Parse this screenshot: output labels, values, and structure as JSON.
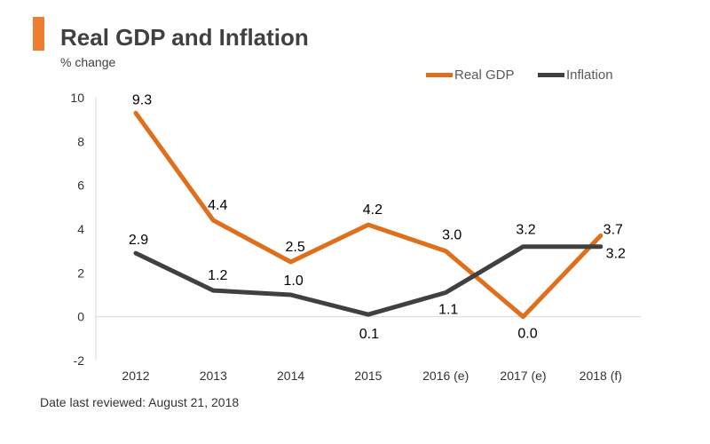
{
  "header": {
    "title": "Real GDP and Inflation",
    "subtitle": "% change",
    "accent_color": "#ED7D31"
  },
  "footnote": "Date last reviewed: August 21, 2018",
  "chart_data": {
    "type": "line",
    "categories": [
      "2012",
      "2013",
      "2014",
      "2015",
      "2016 (e)",
      "2017 (e)",
      "2018 (f)"
    ],
    "series": [
      {
        "name": "Real GDP",
        "values": [
          9.3,
          4.4,
          2.5,
          4.2,
          3.0,
          0.0,
          3.7
        ],
        "color": "#E06F1C",
        "labels": [
          "9.3",
          "4.4",
          "2.5",
          "4.2",
          "3.0",
          "0.0",
          "3.7"
        ]
      },
      {
        "name": "Inflation",
        "values": [
          2.9,
          1.2,
          1.0,
          0.1,
          1.1,
          3.2,
          3.2
        ],
        "color": "#404040",
        "labels": [
          "2.9",
          "1.2",
          "1.0",
          "0.1",
          "1.1",
          "3.2",
          "3.2"
        ]
      }
    ],
    "ylim": [
      -2,
      10
    ],
    "yticks": [
      "-2",
      "0",
      "2",
      "4",
      "6",
      "8",
      "10"
    ],
    "grid": false,
    "legend_position": "top-right"
  }
}
